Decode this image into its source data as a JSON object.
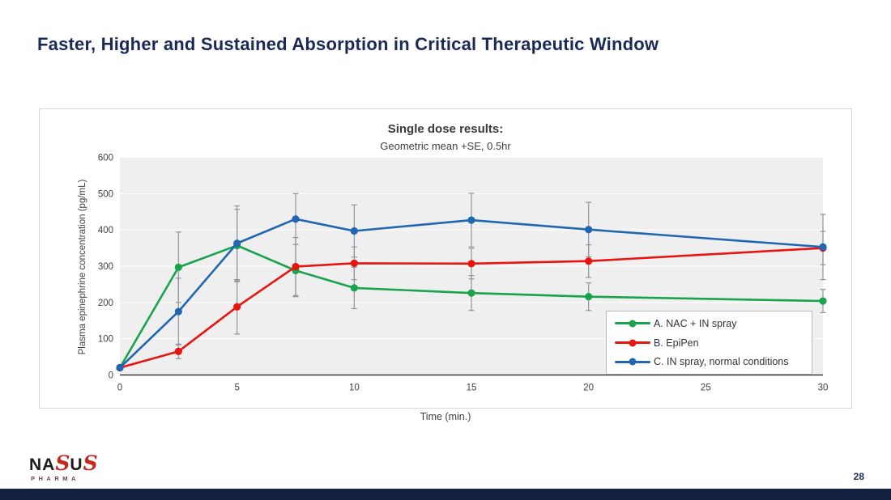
{
  "slide": {
    "title": "Faster, Higher and Sustained Absorption in Critical Therapeutic Window",
    "page_number": "28",
    "accent_navy": "#1b2a55",
    "bottom_bar_color": "#13203f",
    "logo": {
      "part1": "NA",
      "s1": "S",
      "part2": "U",
      "s2": "S",
      "subtext": "PHARMA"
    }
  },
  "chart_data": {
    "type": "line",
    "title": "Single dose results:",
    "subtitle": "Geometric mean +SE, 0.5hr",
    "xlabel": "Time (min.)",
    "ylabel": "Plasma epinephrine concentration (pg/mL)",
    "x": [
      0,
      2.5,
      5,
      7.5,
      10,
      15,
      20,
      30
    ],
    "xlim": [
      0,
      30
    ],
    "ylim": [
      0,
      600
    ],
    "x_ticks": [
      0,
      5,
      10,
      15,
      20,
      25,
      30
    ],
    "y_ticks": [
      0,
      100,
      200,
      300,
      400,
      500,
      600
    ],
    "grid": "horizontal-white-on-gray",
    "plot_bg": "#efefef",
    "gridline_color": "#ffffff",
    "axis_line_color": "#1a1a1a",
    "error_bar_color": "#8e959e",
    "legend_position": "inside-lower-right",
    "series": [
      {
        "name": "A. NAC + IN spray",
        "color": "#1aa34d",
        "values": [
          20,
          297,
          357,
          288,
          240,
          226,
          216,
          204
        ],
        "se": [
          4,
          97,
          100,
          72,
          57,
          48,
          38,
          32
        ]
      },
      {
        "name": "B. EpiPen",
        "color": "#e8140f",
        "values": [
          20,
          65,
          188,
          299,
          308,
          307,
          314,
          350
        ],
        "se": [
          4,
          20,
          75,
          80,
          45,
          42,
          45,
          46
        ]
      },
      {
        "name": "C. IN spray, normal conditions",
        "color": "#2066b0",
        "values": [
          20,
          175,
          363,
          430,
          397,
          427,
          401,
          353
        ],
        "se": [
          4,
          92,
          103,
          70,
          72,
          74,
          75,
          90
        ]
      }
    ]
  }
}
